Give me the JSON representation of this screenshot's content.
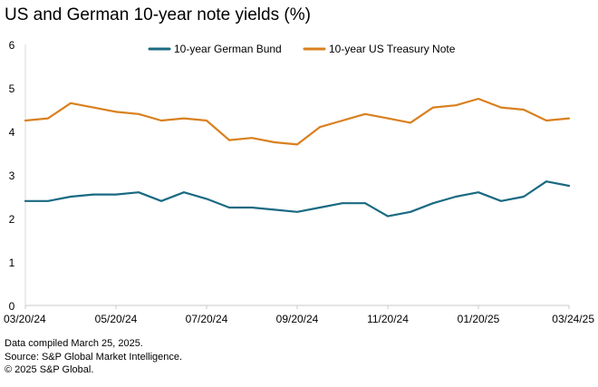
{
  "chart_data": {
    "type": "line",
    "title": "US and German 10-year note yields (%)",
    "xlabel": "",
    "ylabel": "",
    "ylim": [
      0,
      6
    ],
    "yticks": [
      0,
      1,
      2,
      3,
      4,
      5,
      6
    ],
    "x": [
      "03/20/24",
      "04/05/24",
      "04/20/24",
      "05/05/24",
      "05/20/24",
      "06/05/24",
      "06/20/24",
      "07/05/24",
      "07/20/24",
      "08/05/24",
      "08/20/24",
      "09/05/24",
      "09/20/24",
      "10/05/24",
      "10/20/24",
      "11/05/24",
      "11/20/24",
      "12/05/24",
      "12/20/24",
      "01/05/25",
      "01/20/25",
      "02/05/25",
      "02/20/25",
      "03/05/25",
      "03/24/25"
    ],
    "xticks": [
      "03/20/24",
      "05/20/24",
      "07/20/24",
      "09/20/24",
      "11/20/24",
      "01/20/25",
      "03/24/25"
    ],
    "legend_position": "top",
    "series": [
      {
        "name": "10-year German Bund",
        "color": "#1a6a82",
        "values": [
          2.4,
          2.4,
          2.5,
          2.55,
          2.55,
          2.6,
          2.4,
          2.6,
          2.45,
          2.25,
          2.25,
          2.2,
          2.15,
          2.25,
          2.35,
          2.35,
          2.05,
          2.15,
          2.35,
          2.5,
          2.6,
          2.4,
          2.5,
          2.85,
          2.75
        ]
      },
      {
        "name": "10-year US Treasury Note",
        "color": "#d9801f",
        "values": [
          4.25,
          4.3,
          4.65,
          4.55,
          4.45,
          4.4,
          4.25,
          4.3,
          4.25,
          3.8,
          3.85,
          3.75,
          3.7,
          4.1,
          4.25,
          4.4,
          4.3,
          4.2,
          4.55,
          4.6,
          4.75,
          4.55,
          4.5,
          4.25,
          4.3
        ]
      }
    ]
  },
  "notes": {
    "compiled": "Data compiled March 25, 2025.",
    "source": "Source: S&P Global Market Intelligence.",
    "copyright": "© 2025 S&P Global."
  }
}
